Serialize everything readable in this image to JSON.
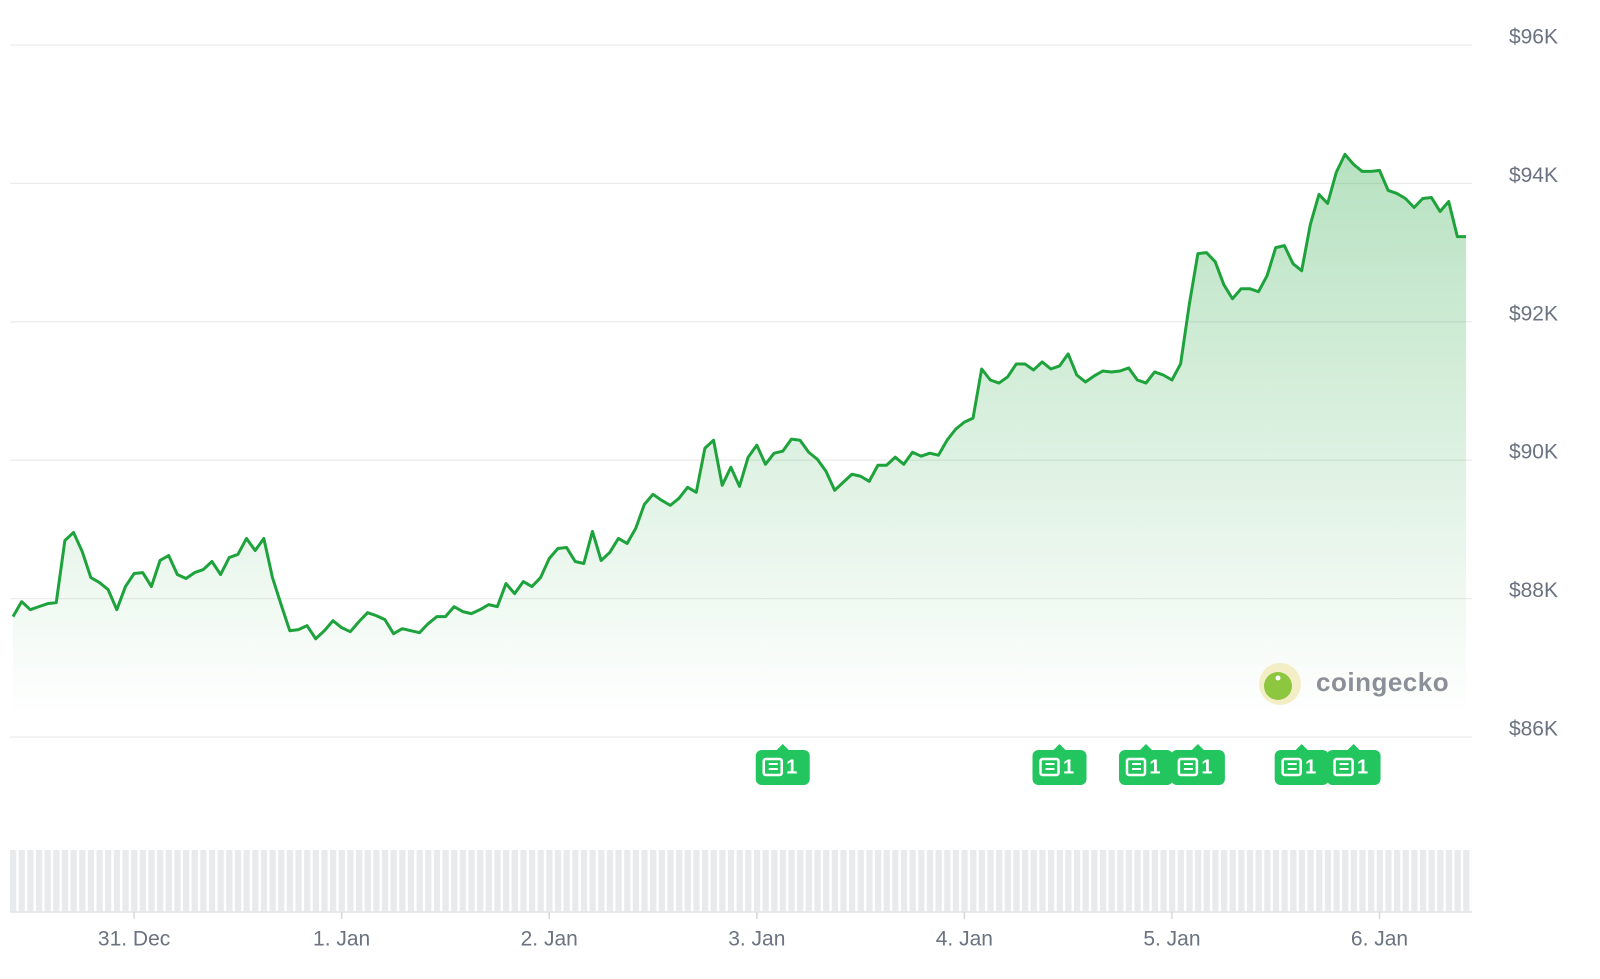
{
  "chart_data": {
    "type": "line",
    "categories": [
      null,
      null,
      null,
      null,
      null,
      null,
      null,
      null,
      null,
      null,
      null,
      null,
      null,
      null,
      "31. Dec",
      null,
      null,
      null,
      null,
      null,
      null,
      null,
      null,
      null,
      null,
      null,
      null,
      null,
      null,
      null,
      null,
      null,
      null,
      null,
      null,
      null,
      null,
      null,
      "1. Jan",
      null,
      null,
      null,
      null,
      null,
      null,
      null,
      null,
      null,
      null,
      null,
      null,
      null,
      null,
      null,
      null,
      null,
      null,
      null,
      null,
      null,
      null,
      null,
      "2. Jan",
      null,
      null,
      null,
      null,
      null,
      null,
      null,
      null,
      null,
      null,
      null,
      null,
      null,
      null,
      null,
      null,
      null,
      null,
      null,
      null,
      null,
      null,
      null,
      "3. Jan",
      null,
      null,
      null,
      null,
      null,
      null,
      null,
      null,
      null,
      null,
      null,
      null,
      null,
      null,
      null,
      null,
      null,
      null,
      null,
      null,
      null,
      null,
      null,
      "4. Jan",
      null,
      null,
      null,
      null,
      null,
      null,
      null,
      null,
      null,
      null,
      null,
      null,
      null,
      null,
      null,
      null,
      null,
      null,
      null,
      null,
      null,
      null,
      null,
      "5. Jan",
      null,
      null,
      null,
      null,
      null,
      null,
      null,
      null,
      null,
      null,
      null,
      null,
      null,
      null,
      null,
      null,
      null,
      null,
      null,
      null,
      null,
      null,
      null,
      "6. Jan",
      null,
      null,
      null,
      null,
      null,
      null,
      null,
      null,
      null,
      null
    ],
    "series": [
      {
        "name": null,
        "color": "#1ea33c",
        "values": [
          87740,
          87956,
          87840,
          87884,
          87927,
          87942,
          88840,
          88956,
          88681,
          88304,
          88232,
          88130,
          87840,
          88174,
          88362,
          88376,
          88174,
          88551,
          88623,
          88348,
          88290,
          88376,
          88420,
          88536,
          88348,
          88594,
          88638,
          88869,
          88695,
          88869,
          88304,
          87913,
          87536,
          87551,
          87609,
          87420,
          87536,
          87681,
          87580,
          87522,
          87667,
          87797,
          87754,
          87696,
          87493,
          87565,
          87536,
          87507,
          87638,
          87739,
          87739,
          87884,
          87812,
          87783,
          87840,
          87913,
          87884,
          88217,
          88072,
          88246,
          88174,
          88304,
          88580,
          88724,
          88739,
          88536,
          88507,
          88971,
          88551,
          88667,
          88869,
          88797,
          89014,
          89362,
          89507,
          89420,
          89347,
          89449,
          89608,
          89536,
          90173,
          90289,
          89637,
          89898,
          89622,
          90043,
          90217,
          89941,
          90101,
          90130,
          90304,
          90289,
          90115,
          90014,
          89840,
          89565,
          89681,
          89797,
          89768,
          89695,
          89927,
          89927,
          90043,
          89941,
          90115,
          90058,
          90101,
          90072,
          90289,
          90449,
          90550,
          90608,
          91318,
          91159,
          91115,
          91203,
          91391,
          91391,
          91304,
          91420,
          91318,
          91362,
          91536,
          91231,
          91130,
          91217,
          91289,
          91275,
          91289,
          91333,
          91159,
          91115,
          91275,
          91231,
          91159,
          91391,
          92246,
          92985,
          92999,
          92869,
          92536,
          92333,
          92478,
          92478,
          92434,
          92666,
          93072,
          93101,
          92840,
          92738,
          93405,
          93840,
          93710,
          94159,
          94420,
          94275,
          94173,
          94173,
          94188,
          93898,
          93855,
          93782,
          93652,
          93782,
          93797,
          93594,
          93739,
          93231,
          93231
        ]
      }
    ],
    "ylim": [
      86000,
      96000
    ],
    "yticks": [
      {
        "value": 86000,
        "label": "$86K"
      },
      {
        "value": 88000,
        "label": "$88K"
      },
      {
        "value": 90000,
        "label": "$90K"
      },
      {
        "value": 92000,
        "label": "$92K"
      },
      {
        "value": 94000,
        "label": "$94K"
      },
      {
        "value": 96000,
        "label": "$96K"
      }
    ],
    "grid": true,
    "annotations": [
      {
        "index": 89,
        "text": "1"
      },
      {
        "index": 121,
        "text": "1"
      },
      {
        "index": 131,
        "text": "1"
      },
      {
        "index": 137,
        "text": "1"
      },
      {
        "index": 149,
        "text": "1"
      },
      {
        "index": 155,
        "text": "1"
      }
    ],
    "watermark": "coingecko"
  }
}
